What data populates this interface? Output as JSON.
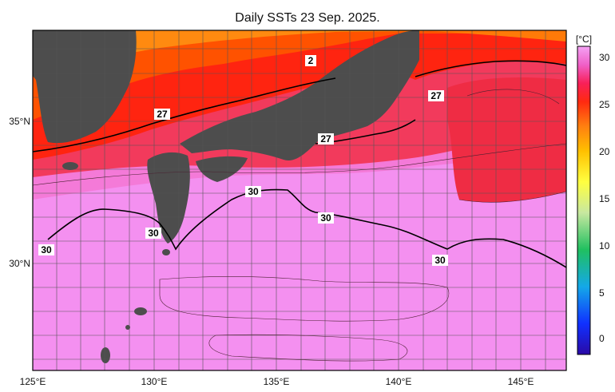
{
  "title": "Daily SSTs 23 Sep. 2025.",
  "map": {
    "lon_ticks": [
      "125°E",
      "130°E",
      "135°E",
      "140°E",
      "145°E"
    ],
    "lat_ticks": [
      "35°N",
      "30°N"
    ],
    "contour_labels": [
      "27",
      "27",
      "27",
      "2",
      "30",
      "30",
      "30",
      "30",
      "30"
    ]
  },
  "colorbar": {
    "unit": "[°C]",
    "ticks": [
      "30",
      "25",
      "20",
      "15",
      "10",
      "5",
      "0"
    ]
  },
  "colors": {
    "land": "#4d4d4d",
    "sst_30": "#f48ef4",
    "sst_29": "#ff66a8",
    "sst_28": "#f23046",
    "sst_27": "#ff1f0f",
    "sst_26": "#ff4a00",
    "sst_25": "#ff8c10"
  }
}
